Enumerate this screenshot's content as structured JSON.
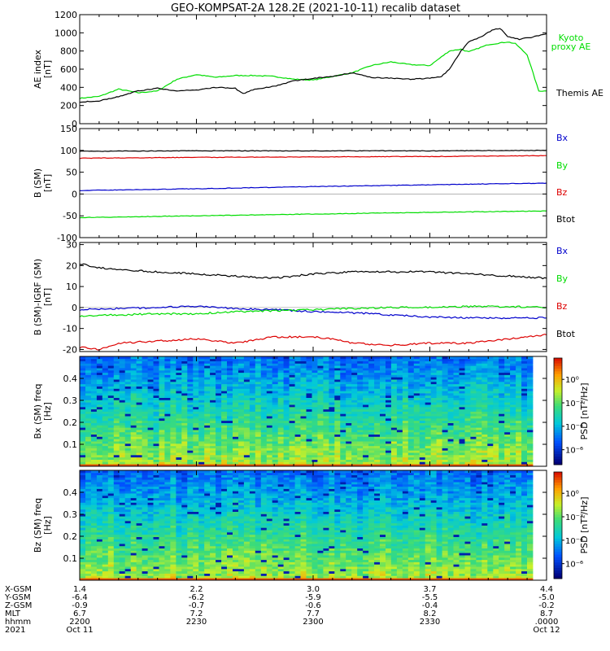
{
  "title": "GEO-KOMPSAT-2A 128.2E (2021-10-11) recalib dataset",
  "time_range": [
    "22:00",
    "24:00"
  ],
  "colors": {
    "black": "#000000",
    "green": "#00dd00",
    "red": "#dd0000",
    "blue": "#0000cc"
  },
  "chart_data": [
    {
      "type": "line",
      "ylabel": "AE index [nT]",
      "ylim": [
        0,
        1200
      ],
      "yticks": [
        0,
        200,
        400,
        600,
        800,
        1000,
        1200
      ],
      "series": [
        {
          "name": "Kyoto proxy AE",
          "color": "#00dd00",
          "x": [
            0,
            5,
            10,
            15,
            20,
            25,
            30,
            35,
            40,
            45,
            50,
            55,
            60,
            65,
            70,
            75,
            80,
            85,
            90,
            95,
            98,
            100,
            105,
            110,
            112,
            115,
            118,
            120
          ],
          "y": [
            280,
            300,
            380,
            340,
            360,
            490,
            540,
            510,
            530,
            530,
            520,
            490,
            480,
            520,
            560,
            640,
            680,
            650,
            640,
            800,
            820,
            790,
            870,
            900,
            880,
            760,
            360,
            360
          ]
        },
        {
          "name": "Themis AE",
          "color": "#000000",
          "x": [
            0,
            5,
            10,
            15,
            20,
            25,
            30,
            35,
            40,
            42,
            45,
            50,
            55,
            60,
            65,
            70,
            75,
            80,
            85,
            90,
            93,
            95,
            98,
            100,
            103,
            106,
            108,
            110,
            113,
            116,
            120
          ],
          "y": [
            240,
            250,
            300,
            360,
            390,
            360,
            370,
            400,
            390,
            330,
            380,
            410,
            470,
            500,
            520,
            560,
            510,
            500,
            490,
            500,
            520,
            600,
            800,
            900,
            950,
            1030,
            1050,
            960,
            930,
            950,
            990
          ]
        }
      ]
    },
    {
      "type": "line",
      "ylabel": "B (SM) [nT]",
      "ylim": [
        -100,
        150
      ],
      "yticks": [
        -100,
        -50,
        0,
        50,
        100,
        150
      ],
      "series": [
        {
          "name": "Bx",
          "color": "#0000cc",
          "x": [
            0,
            30,
            60,
            90,
            120
          ],
          "y": [
            8,
            12,
            17,
            21,
            25
          ]
        },
        {
          "name": "By",
          "color": "#00dd00",
          "x": [
            0,
            30,
            60,
            90,
            120
          ],
          "y": [
            -54,
            -50,
            -46,
            -42,
            -39
          ]
        },
        {
          "name": "Bz",
          "color": "#dd0000",
          "x": [
            0,
            30,
            60,
            90,
            120
          ],
          "y": [
            82,
            84,
            85,
            86,
            88
          ]
        },
        {
          "name": "Btot",
          "color": "#000000",
          "x": [
            0,
            30,
            60,
            90,
            120
          ],
          "y": [
            98,
            99,
            99,
            99,
            100
          ]
        }
      ]
    },
    {
      "type": "line",
      "ylabel": "B (SM)-IGRF (SM) [nT]",
      "ylim": [
        -21,
        31
      ],
      "yticks": [
        -20,
        -10,
        0,
        10,
        20,
        30
      ],
      "series": [
        {
          "name": "Bx",
          "color": "#0000cc",
          "x": [
            0,
            10,
            20,
            30,
            40,
            50,
            60,
            70,
            80,
            90,
            100,
            110,
            120
          ],
          "y": [
            -1,
            -0.5,
            0,
            0.5,
            -0.5,
            -1,
            -2,
            -2.5,
            -3.5,
            -4.5,
            -5,
            -5,
            -5
          ]
        },
        {
          "name": "By",
          "color": "#00dd00",
          "x": [
            0,
            10,
            20,
            30,
            40,
            50,
            60,
            70,
            80,
            90,
            100,
            110,
            120
          ],
          "y": [
            -4,
            -3.5,
            -3,
            -3,
            -2,
            -1.5,
            -1,
            -0.5,
            0,
            0,
            0.5,
            0.5,
            0
          ]
        },
        {
          "name": "Bz",
          "color": "#dd0000",
          "x": [
            0,
            5,
            10,
            20,
            30,
            40,
            50,
            60,
            65,
            70,
            80,
            90,
            100,
            110,
            120
          ],
          "y": [
            -19,
            -20,
            -17,
            -16,
            -15,
            -17,
            -14,
            -14,
            -15,
            -17,
            -18,
            -17,
            -17,
            -15,
            -13
          ]
        },
        {
          "name": "Btot",
          "color": "#000000",
          "x": [
            0,
            5,
            10,
            20,
            30,
            40,
            50,
            60,
            70,
            80,
            90,
            100,
            110,
            120
          ],
          "y": [
            21,
            19,
            18,
            17,
            16,
            15,
            14,
            16,
            17,
            17,
            17,
            16,
            15,
            14
          ]
        }
      ]
    },
    {
      "type": "heatmap",
      "ylabel": "Bx (SM) freq [Hz]",
      "ylim": [
        0,
        0.5
      ],
      "yticks": [
        0.1,
        0.2,
        0.3,
        0.4
      ],
      "colorbar": {
        "label": "PSD [nT²/Hz]",
        "ticks": [
          "10⁰",
          "10⁻²",
          "10⁻⁴",
          "10⁻⁶"
        ]
      }
    },
    {
      "type": "heatmap",
      "ylabel": "Bz (SM) freq [Hz]",
      "ylim": [
        0,
        0.5
      ],
      "yticks": [
        0.1,
        0.2,
        0.3,
        0.4
      ],
      "colorbar": {
        "label": "PSD [nT²/Hz]",
        "ticks": [
          "10⁰",
          "10⁻²",
          "10⁻⁴",
          "10⁻⁶"
        ]
      }
    }
  ],
  "legends": [
    [
      {
        "text": "Kyoto",
        "color": "#00dd00"
      },
      {
        "text": "proxy AE",
        "color": "#00dd00"
      },
      {
        "text": "Themis AE",
        "color": "#000000"
      }
    ],
    [
      {
        "text": "Bx",
        "color": "#0000cc"
      },
      {
        "text": "By",
        "color": "#00dd00"
      },
      {
        "text": "Bz",
        "color": "#dd0000"
      },
      {
        "text": "Btot",
        "color": "#000000"
      }
    ],
    [
      {
        "text": "Bx",
        "color": "#0000cc"
      },
      {
        "text": "By",
        "color": "#00dd00"
      },
      {
        "text": "Bz",
        "color": "#dd0000"
      },
      {
        "text": "Btot",
        "color": "#000000"
      }
    ]
  ],
  "ephemeris": {
    "labels": [
      "X-GSM",
      "Y-GSM",
      "Z-GSM",
      "MLT",
      "hhmm",
      "2021"
    ],
    "columns": [
      {
        "x": 0,
        "values": [
          "1.4",
          "-6.4",
          "-0.9",
          "6.7",
          "2200",
          "Oct 11"
        ]
      },
      {
        "x": 30,
        "values": [
          "2.2",
          "-6.2",
          "-0.7",
          "7.2",
          "2230",
          ""
        ]
      },
      {
        "x": 60,
        "values": [
          "3.0",
          "-5.9",
          "-0.6",
          "7.7",
          "2300",
          ""
        ]
      },
      {
        "x": 90,
        "values": [
          "3.7",
          "-5.5",
          "-0.4",
          "8.2",
          "2330",
          ""
        ]
      },
      {
        "x": 120,
        "values": [
          "4.4",
          "-5.0",
          "-0.2",
          "8.7",
          ".0000",
          "Oct 12"
        ]
      }
    ]
  }
}
